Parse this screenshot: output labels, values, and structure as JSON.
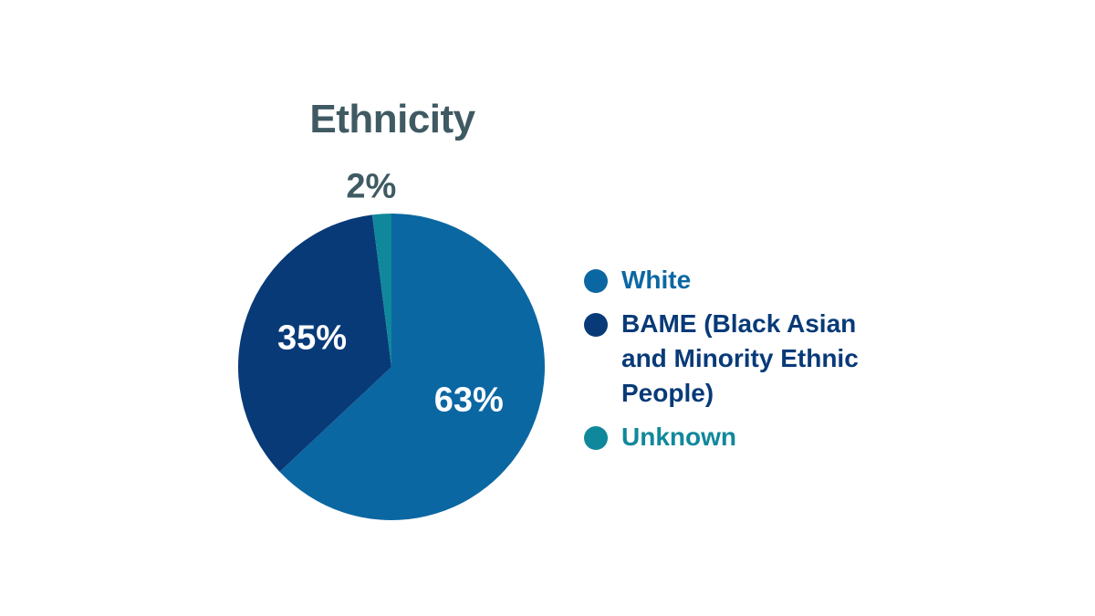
{
  "chart_data": {
    "type": "pie",
    "title": "Ethnicity",
    "slices": [
      {
        "label": "White",
        "value": 63,
        "display": "63%",
        "color": "#0b67a2",
        "label_color": "#ffffff"
      },
      {
        "label": "BAME (Black Asian and Minority Ethnic People)",
        "value": 35,
        "display": "35%",
        "color": "#083a78",
        "label_color": "#ffffff"
      },
      {
        "label": "Unknown",
        "value": 2,
        "display": "2%",
        "color": "#10889b",
        "label_color": "#3f5a63"
      }
    ],
    "legend_position": "right"
  }
}
